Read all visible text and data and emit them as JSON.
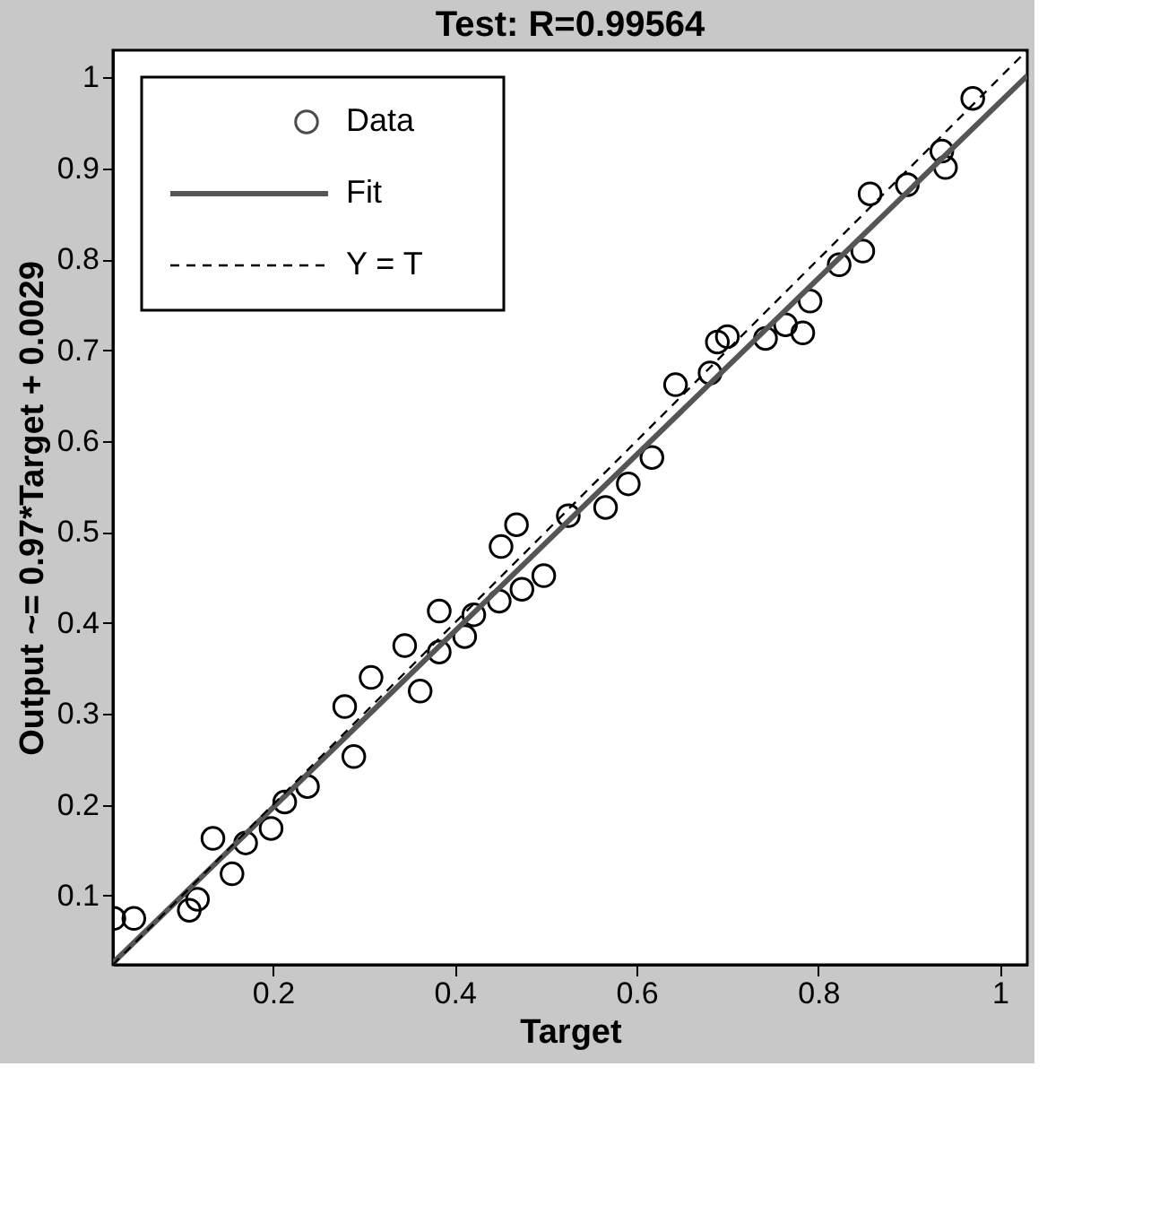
{
  "chart_data": {
    "type": "scatter",
    "title": "Test: R=0.99564",
    "xlabel": "Target",
    "ylabel": "Output ~= 0.97*Target + 0.0029",
    "xlim": [
      0.024,
      1.03
    ],
    "ylim": [
      0.024,
      1.03
    ],
    "xticks": [
      0.2,
      0.4,
      0.6,
      0.8,
      1
    ],
    "yticks": [
      0.1,
      0.2,
      0.3,
      0.4,
      0.5,
      0.6,
      0.7,
      0.8,
      0.9,
      1
    ],
    "grid": false,
    "legend": "top left",
    "series": [
      {
        "name": "Data",
        "marker": "circle",
        "color": "#000000",
        "x": [
          0.025,
          0.047,
          0.108,
          0.117,
          0.134,
          0.155,
          0.17,
          0.198,
          0.213,
          0.238,
          0.289,
          0.279,
          0.308,
          0.345,
          0.362,
          0.383,
          0.383,
          0.411,
          0.421,
          0.449,
          0.474,
          0.498,
          0.451,
          0.468,
          0.525,
          0.566,
          0.591,
          0.617,
          0.643,
          0.681,
          0.689,
          0.7,
          0.742,
          0.764,
          0.783,
          0.791,
          0.823,
          0.849,
          0.857,
          0.898,
          0.936,
          0.94,
          0.97
        ],
        "values": [
          0.075,
          0.075,
          0.084,
          0.096,
          0.163,
          0.124,
          0.158,
          0.174,
          0.203,
          0.22,
          0.253,
          0.308,
          0.34,
          0.375,
          0.325,
          0.413,
          0.368,
          0.385,
          0.409,
          0.424,
          0.437,
          0.452,
          0.484,
          0.508,
          0.518,
          0.527,
          0.553,
          0.582,
          0.662,
          0.675,
          0.709,
          0.715,
          0.713,
          0.728,
          0.719,
          0.754,
          0.794,
          0.809,
          0.872,
          0.882,
          0.919,
          0.901,
          0.977
        ]
      },
      {
        "name": "Fit",
        "type": "line",
        "line_style": "solid",
        "color": "#555555",
        "x": [
          0.024,
          1.03
        ],
        "values": [
          0.026,
          1.002
        ]
      },
      {
        "name": "Y = T",
        "type": "line",
        "line_style": "dashed",
        "color": "#000000",
        "x": [
          0.024,
          1.03
        ],
        "values": [
          0.024,
          1.03
        ]
      }
    ]
  }
}
